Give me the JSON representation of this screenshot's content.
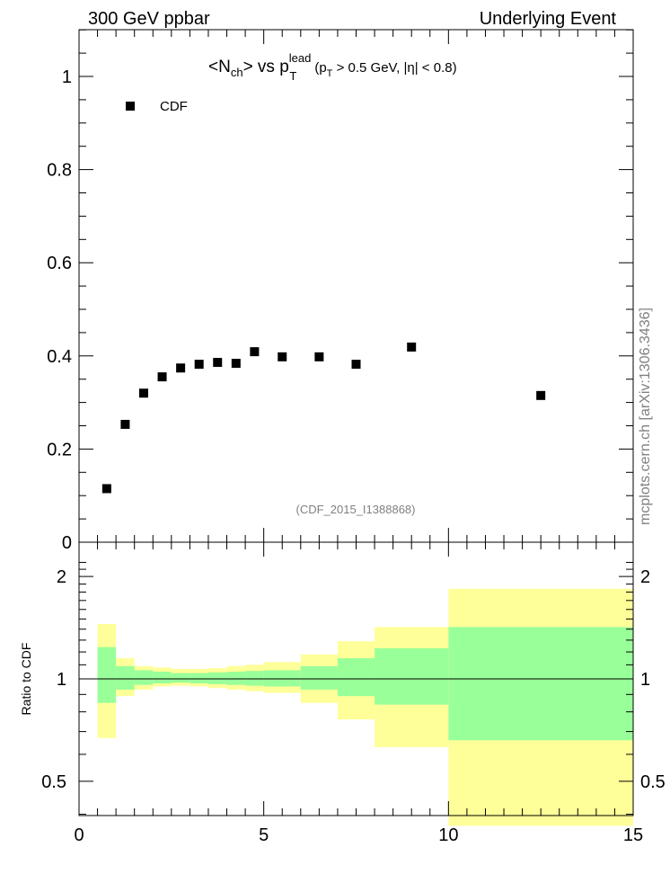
{
  "header": {
    "left": "300 GeV ppbar",
    "right": "Underlying Event"
  },
  "plot": {
    "title_main": "<N",
    "title_ch": "ch",
    "title_mid": "> vs p",
    "title_sup": "lead",
    "title_sub": "T",
    "title_cut_1": "(p",
    "title_cut_sub": "T",
    "title_cut_2": " > 0.5 GeV, |η| < 0.8)",
    "legend": "CDF",
    "analysis_id": "(CDF_2015_I1388868)",
    "watermark": "mcplots.cern.ch [arXiv:1306.3436]"
  },
  "ratio": {
    "ylabel": "Ratio to CDF"
  },
  "colors": {
    "band_inner": "#99ff99",
    "band_outer": "#ffff99",
    "marker": "#000000"
  },
  "chart_data": [
    {
      "type": "scatter",
      "series": [
        {
          "name": "CDF",
          "x": [
            0.75,
            1.25,
            1.75,
            2.25,
            2.75,
            3.25,
            3.75,
            4.25,
            4.75,
            5.5,
            6.5,
            7.5,
            9.0,
            12.5
          ],
          "values": [
            0.115,
            0.253,
            0.32,
            0.355,
            0.374,
            0.382,
            0.386,
            0.384,
            0.409,
            0.398,
            0.398,
            0.382,
            0.419,
            0.315
          ]
        }
      ],
      "xlim": [
        0,
        15
      ],
      "ylim": [
        0,
        1.1
      ],
      "yticks": [
        "0",
        "0.2",
        "0.4",
        "0.6",
        "0.8",
        "1"
      ],
      "legend_position": "top-left"
    },
    {
      "type": "area",
      "ylabel": "Ratio to CDF",
      "xlim": [
        0,
        15
      ],
      "ylim": [
        0.36,
        2.3
      ],
      "xticks": [
        "0",
        "5",
        "10",
        "15"
      ],
      "yticks": [
        "0.5",
        "1",
        "2"
      ],
      "reference_line": 1,
      "bins": [
        {
          "x0": 0.5,
          "x1": 1.0,
          "inner": [
            0.85,
            1.24
          ],
          "outer": [
            0.67,
            1.45
          ]
        },
        {
          "x0": 1.0,
          "x1": 1.5,
          "inner": [
            0.93,
            1.09
          ],
          "outer": [
            0.89,
            1.15
          ]
        },
        {
          "x0": 1.5,
          "x1": 2.0,
          "inner": [
            0.96,
            1.06
          ],
          "outer": [
            0.93,
            1.09
          ]
        },
        {
          "x0": 2.0,
          "x1": 2.5,
          "inner": [
            0.97,
            1.05
          ],
          "outer": [
            0.95,
            1.08
          ]
        },
        {
          "x0": 2.5,
          "x1": 3.0,
          "inner": [
            0.975,
            1.04
          ],
          "outer": [
            0.955,
            1.07
          ]
        },
        {
          "x0": 3.0,
          "x1": 3.5,
          "inner": [
            0.97,
            1.04
          ],
          "outer": [
            0.95,
            1.07
          ]
        },
        {
          "x0": 3.5,
          "x1": 4.0,
          "inner": [
            0.965,
            1.045
          ],
          "outer": [
            0.94,
            1.075
          ]
        },
        {
          "x0": 4.0,
          "x1": 4.5,
          "inner": [
            0.96,
            1.05
          ],
          "outer": [
            0.93,
            1.09
          ]
        },
        {
          "x0": 4.5,
          "x1": 5.0,
          "inner": [
            0.955,
            1.055
          ],
          "outer": [
            0.92,
            1.1
          ]
        },
        {
          "x0": 5.0,
          "x1": 6.0,
          "inner": [
            0.95,
            1.06
          ],
          "outer": [
            0.91,
            1.12
          ]
        },
        {
          "x0": 6.0,
          "x1": 7.0,
          "inner": [
            0.93,
            1.09
          ],
          "outer": [
            0.85,
            1.18
          ]
        },
        {
          "x0": 7.0,
          "x1": 8.0,
          "inner": [
            0.89,
            1.15
          ],
          "outer": [
            0.76,
            1.29
          ]
        },
        {
          "x0": 8.0,
          "x1": 10.0,
          "inner": [
            0.84,
            1.23
          ],
          "outer": [
            0.63,
            1.42
          ]
        },
        {
          "x0": 10.0,
          "x1": 15.0,
          "inner": [
            0.66,
            1.42
          ],
          "outer": [
            0.37,
            1.84
          ]
        }
      ]
    }
  ]
}
